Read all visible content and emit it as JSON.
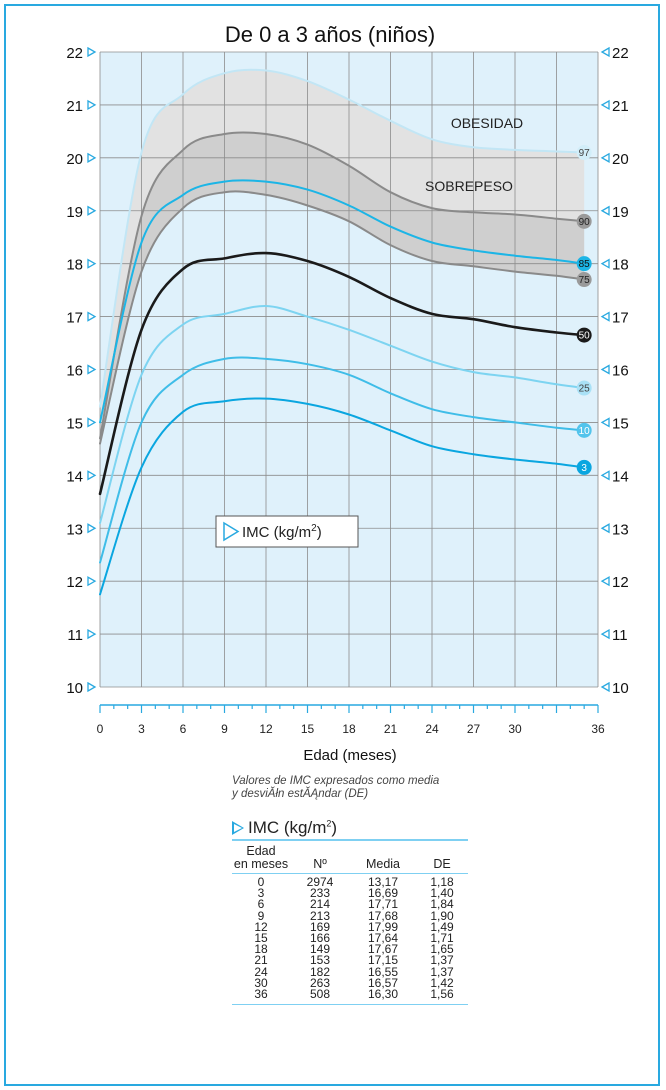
{
  "chart_data": {
    "type": "line",
    "title": "De 0 a 3 años (niños)",
    "xlabel": "Edad (meses)",
    "ylabel": "",
    "x_ticks": [
      0,
      3,
      6,
      9,
      12,
      15,
      18,
      21,
      24,
      27,
      30,
      33,
      36
    ],
    "x_tick_labels": [
      "0",
      "3",
      "6",
      "9",
      "12",
      "15",
      "18",
      "21",
      "24",
      "27",
      "30",
      "",
      "36"
    ],
    "xlim": [
      0,
      36
    ],
    "ylim": [
      10,
      22
    ],
    "y_ticks": [
      10,
      11,
      12,
      13,
      14,
      15,
      16,
      17,
      18,
      19,
      20,
      21,
      22
    ],
    "grid": true,
    "legend_label": "IMC (kg/m",
    "legend_superscript": "2",
    "legend_suffix": ")",
    "zone_labels": [
      "OBESIDAD",
      "SOBREPESO"
    ],
    "series": [
      {
        "name": "97",
        "color": "#c2e6f5",
        "width": 2,
        "label_color": "#d2eef9",
        "label_text_color": "#444",
        "x": [
          0,
          3,
          6,
          9,
          12,
          15,
          18,
          21,
          24,
          27,
          30,
          33,
          35
        ],
        "values": [
          15.3,
          20.1,
          21.2,
          21.6,
          21.65,
          21.45,
          21.1,
          20.7,
          20.35,
          20.2,
          20.15,
          20.12,
          20.1
        ]
      },
      {
        "name": "90",
        "color": "#8a8a8a",
        "width": 2,
        "label_color": "#9a9a9a",
        "label_text_color": "#222",
        "x": [
          0,
          3,
          6,
          9,
          12,
          15,
          18,
          21,
          24,
          27,
          30,
          33,
          35
        ],
        "values": [
          14.7,
          18.9,
          20.15,
          20.45,
          20.45,
          20.25,
          19.85,
          19.35,
          19.05,
          18.97,
          18.93,
          18.85,
          18.8
        ]
      },
      {
        "name": "85",
        "color": "#1cb5e6",
        "width": 2,
        "label_color": "#1cb5e6",
        "label_text_color": "#111",
        "x": [
          0,
          3,
          6,
          9,
          12,
          15,
          18,
          21,
          24,
          27,
          30,
          33,
          35
        ],
        "values": [
          15.0,
          18.4,
          19.3,
          19.55,
          19.55,
          19.4,
          19.1,
          18.7,
          18.4,
          18.25,
          18.15,
          18.07,
          18.0
        ]
      },
      {
        "name": "75",
        "color": "#8a8a8a",
        "width": 2,
        "label_color": "#9a9a9a",
        "label_text_color": "#222",
        "x": [
          0,
          3,
          6,
          9,
          12,
          15,
          18,
          21,
          24,
          27,
          30,
          33,
          35
        ],
        "values": [
          14.6,
          17.85,
          19.05,
          19.35,
          19.3,
          19.1,
          18.8,
          18.35,
          18.05,
          17.95,
          17.85,
          17.77,
          17.7
        ]
      },
      {
        "name": "50",
        "color": "#1a1a1a",
        "width": 2.6,
        "label_color": "#1a1a1a",
        "label_text_color": "#ffffff",
        "x": [
          0,
          3,
          6,
          9,
          12,
          15,
          18,
          21,
          24,
          27,
          30,
          33,
          35
        ],
        "values": [
          13.65,
          16.75,
          17.9,
          18.1,
          18.2,
          18.05,
          17.75,
          17.35,
          17.05,
          16.95,
          16.8,
          16.7,
          16.65
        ]
      },
      {
        "name": "25",
        "color": "#7dd4f1",
        "width": 2,
        "label_color": "#a9e1f6",
        "label_text_color": "#444",
        "x": [
          0,
          3,
          6,
          9,
          12,
          15,
          18,
          21,
          24,
          27,
          30,
          33,
          35
        ],
        "values": [
          13.1,
          15.9,
          16.85,
          17.05,
          17.2,
          17.0,
          16.75,
          16.45,
          16.15,
          15.95,
          15.85,
          15.72,
          15.65
        ]
      },
      {
        "name": "10",
        "color": "#3fbde8",
        "width": 2,
        "label_color": "#52c4ec",
        "label_text_color": "#ffffff",
        "x": [
          0,
          3,
          6,
          9,
          12,
          15,
          18,
          21,
          24,
          27,
          30,
          33,
          35
        ],
        "values": [
          12.35,
          15.0,
          15.9,
          16.2,
          16.2,
          16.1,
          15.9,
          15.55,
          15.25,
          15.1,
          15.0,
          14.9,
          14.85
        ]
      },
      {
        "name": "3",
        "color": "#0aa6e0",
        "width": 2,
        "label_color": "#0aa6e0",
        "label_text_color": "#ffffff",
        "x": [
          0,
          3,
          6,
          9,
          12,
          15,
          18,
          21,
          24,
          27,
          30,
          33,
          35
        ],
        "values": [
          11.75,
          14.15,
          15.2,
          15.4,
          15.45,
          15.35,
          15.15,
          14.85,
          14.55,
          14.4,
          14.3,
          14.22,
          14.15
        ]
      }
    ],
    "colors": {
      "plot_bg": "#dff1fb",
      "grid": "#8c8c8c",
      "shade_obesity": "#e2e2e2",
      "shade_overweight": "#cfcfcf",
      "accent": "#29a9e0"
    }
  },
  "table": {
    "note_line1": "Valores de IMC expresados como media",
    "note_line2": "y desviĂłn estĂĄndar (DE)",
    "title_prefix": "IMC (kg/m",
    "title_sup": "2",
    "title_suffix": ")",
    "col_edad_line1": "Edad",
    "col_edad_line2": "en meses",
    "col_n": "Nº",
    "col_media": "Media",
    "col_de": "DE",
    "rows": [
      [
        "0",
        "2974",
        "13,17",
        "1,18"
      ],
      [
        "3",
        "233",
        "16,69",
        "1,40"
      ],
      [
        "6",
        "214",
        "17,71",
        "1,84"
      ],
      [
        "9",
        "213",
        "17,68",
        "1,90"
      ],
      [
        "12",
        "169",
        "17,99",
        "1,49"
      ],
      [
        "15",
        "166",
        "17,64",
        "1,71"
      ],
      [
        "18",
        "149",
        "17,67",
        "1,65"
      ],
      [
        "21",
        "153",
        "17,15",
        "1,37"
      ],
      [
        "24",
        "182",
        "16,55",
        "1,37"
      ],
      [
        "30",
        "263",
        "16,57",
        "1,42"
      ],
      [
        "36",
        "508",
        "16,30",
        "1,56"
      ]
    ]
  }
}
